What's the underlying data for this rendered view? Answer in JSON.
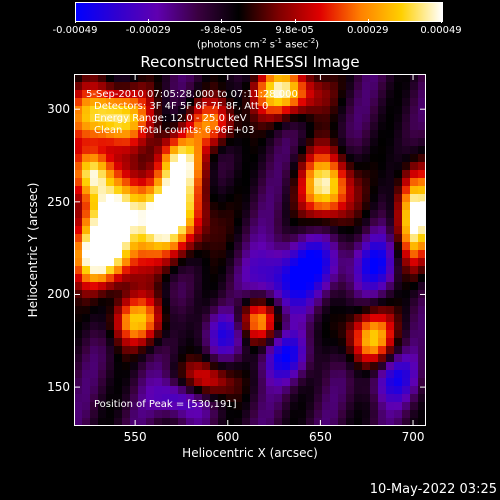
{
  "colorbar": {
    "ticks": [
      "-0.00049",
      "-0.00029",
      "-9.8e-05",
      "9.8e-05",
      "0.00029",
      "0.00049"
    ],
    "unit_prefix": "(photons cm",
    "unit_exp1": "-2",
    "unit_mid1": " s",
    "unit_exp2": "-1",
    "unit_mid2": " asec",
    "unit_exp3": "-2",
    "unit_suffix": ")",
    "colors": [
      "#0000ff",
      "#3000d0",
      "#6000b0",
      "#3a0040",
      "#000000",
      "#800000",
      "#e00000",
      "#ff8000",
      "#ffd000",
      "#ffffff"
    ]
  },
  "chart_data": {
    "type": "heatmap",
    "title": "Reconstructed RHESSI Image",
    "xlabel": "Heliocentric X (arcsec)",
    "ylabel": "Heliocentric Y (arcsec)",
    "xlim": [
      517,
      707
    ],
    "ylim": [
      129,
      319
    ],
    "xticks": [
      550,
      600,
      650,
      700
    ],
    "yticks": [
      150,
      200,
      250,
      300
    ],
    "annotations": [
      "5-Sep-2010 07:05:28.000 to 07:11:28.000",
      "Detectors: 3F 4F 5F 6F 7F 8F, Att 0",
      "Energy Range: 12.0 - 25.0 keV",
      "Clean     Total counts: 6.96E+03"
    ],
    "peak_label": "Position of Peak = [530,191]",
    "peak": [
      530,
      191
    ]
  },
  "timestamp": "10-May-2022 03:25"
}
